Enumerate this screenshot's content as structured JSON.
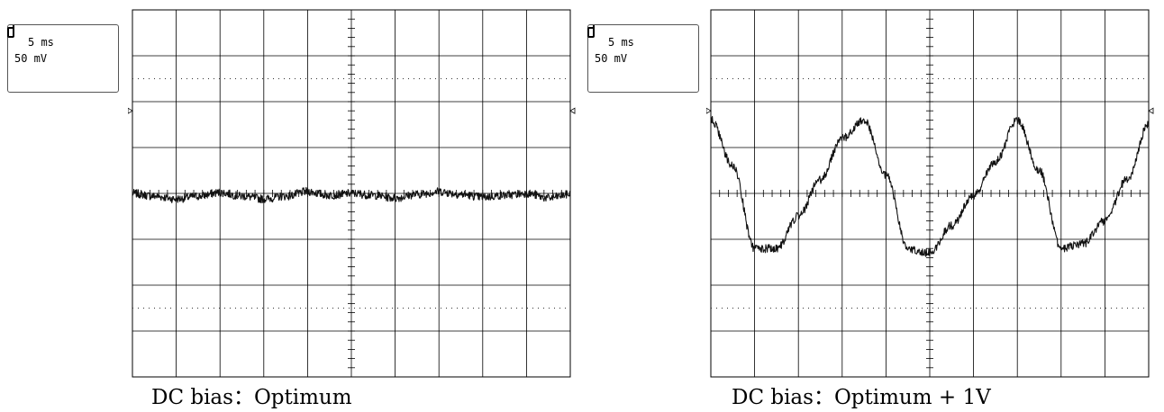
{
  "chart_data": [
    {
      "type": "line",
      "title": "",
      "xlabel": "",
      "ylabel": "",
      "caption": "DC bias：Optimum",
      "settings": {
        "timebase": "5 ms",
        "volts_per_div": "50 mV"
      },
      "divisions": {
        "x": 10,
        "y": 8
      },
      "xlim_ms": [
        0,
        50
      ],
      "ylim_mV": [
        -200,
        200
      ],
      "grid": true,
      "trace_color": "#111111",
      "series": [
        {
          "x": [
            0,
            2.5,
            5,
            7.5,
            10,
            12.5,
            15,
            17.5,
            20,
            22.5,
            25,
            27.5,
            30,
            32.5,
            35,
            37.5,
            40,
            42.5,
            45,
            47.5,
            50
          ],
          "y": [
            0,
            -3,
            -6,
            -3,
            1,
            -3,
            -6,
            -3,
            2,
            -2,
            0,
            -2,
            -5,
            -1,
            2,
            -1,
            -4,
            -2,
            0,
            -5,
            -1
          ]
        }
      ]
    },
    {
      "type": "line",
      "title": "",
      "xlabel": "",
      "ylabel": "",
      "caption": "DC bias：Optimum + 1V",
      "settings": {
        "timebase": "5 ms",
        "volts_per_div": "50 mV"
      },
      "divisions": {
        "x": 10,
        "y": 8
      },
      "xlim_ms": [
        0,
        50
      ],
      "ylim_mV": [
        -200,
        200
      ],
      "grid": true,
      "trace_color": "#111111",
      "series": [
        {
          "x": [
            0,
            2.5,
            5,
            7.5,
            10,
            12.5,
            15,
            17.5,
            20,
            22.5,
            25,
            27.5,
            30,
            32.5,
            35,
            37.5,
            40,
            42.5,
            45,
            47.5,
            50
          ],
          "y": [
            80,
            30,
            -60,
            -60,
            -25,
            15,
            60,
            80,
            20,
            -60,
            -65,
            -35,
            -2,
            35,
            80,
            25,
            -60,
            -55,
            -30,
            15,
            75
          ]
        }
      ]
    }
  ]
}
